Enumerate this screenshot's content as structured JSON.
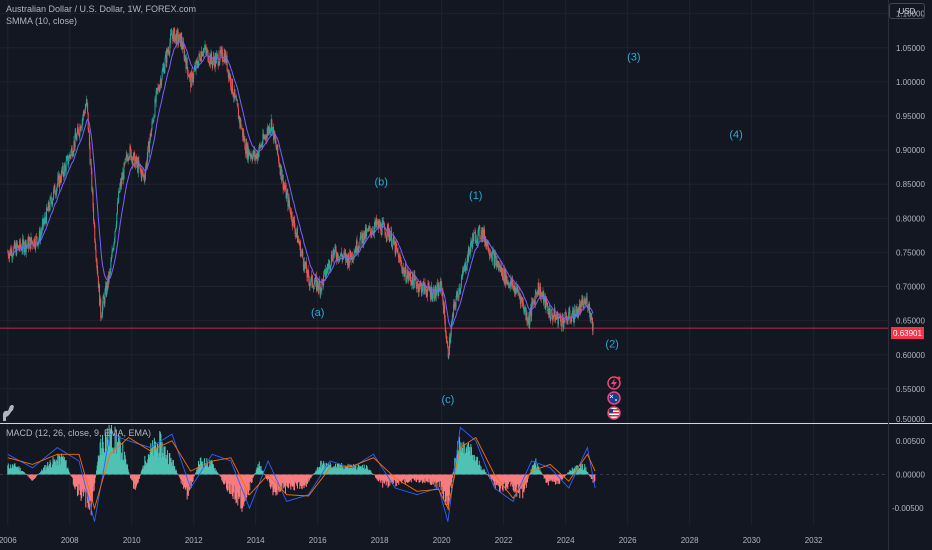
{
  "header": {
    "title": "Australian Dollar / U.S. Dollar, 1W, FOREX.com",
    "indicator": "SMMA (10, close)",
    "currency": "USD"
  },
  "macd_label": "MACD (12, 26, close, 9, EMA, EMA)",
  "last_price": "0.63901",
  "colors": {
    "background": "#131722",
    "up": "#26a69a",
    "down": "#ef5350",
    "smma": "#7b61ff",
    "wave_label": "#2aa8d8",
    "price_line": "#f23645",
    "macd_line": "#2962ff",
    "signal_line": "#ff6d00"
  },
  "icons": [
    "lightning-icon",
    "australia-flag-icon",
    "us-flag-icon",
    "dino-logo-icon"
  ],
  "chart_data": [
    {
      "type": "candlestick",
      "title": "Australian Dollar / U.S. Dollar, 1W, FOREX.com",
      "series": [
        {
          "name": "AUDUSD",
          "x": [
            2006.0,
            2006.5,
            2007.0,
            2007.5,
            2007.9,
            2008.3,
            2008.55,
            2008.8,
            2009.0,
            2009.3,
            2009.6,
            2009.9,
            2010.4,
            2010.8,
            2011.3,
            2011.6,
            2011.9,
            2012.3,
            2012.6,
            2013.0,
            2013.4,
            2013.7,
            2014.0,
            2014.5,
            2014.9,
            2015.3,
            2015.7,
            2016.1,
            2016.5,
            2017.0,
            2017.4,
            2017.9,
            2018.3,
            2018.8,
            2019.3,
            2019.8,
            2020.0,
            2020.2,
            2020.4,
            2020.7,
            2021.0,
            2021.3,
            2021.7,
            2022.1,
            2022.5,
            2022.8,
            2023.1,
            2023.5,
            2023.9,
            2024.3,
            2024.7,
            2024.9
          ],
          "y": [
            0.75,
            0.76,
            0.77,
            0.84,
            0.88,
            0.93,
            0.97,
            0.78,
            0.66,
            0.72,
            0.84,
            0.9,
            0.86,
            0.98,
            1.07,
            1.06,
            1.0,
            1.05,
            1.03,
            1.04,
            0.96,
            0.9,
            0.89,
            0.94,
            0.85,
            0.78,
            0.71,
            0.7,
            0.75,
            0.74,
            0.77,
            0.79,
            0.78,
            0.72,
            0.7,
            0.69,
            0.7,
            0.6,
            0.67,
            0.72,
            0.77,
            0.78,
            0.74,
            0.71,
            0.69,
            0.65,
            0.7,
            0.66,
            0.65,
            0.66,
            0.68,
            0.639
          ]
        }
      ],
      "indicator": "SMMA (10, close)",
      "x_ticks": [
        "2006",
        "2008",
        "2010",
        "2012",
        "2014",
        "2016",
        "2018",
        "2020",
        "2022",
        "2024",
        "2026",
        "2028",
        "2030",
        "2032"
      ],
      "y_ticks": [
        "1.10000",
        "1.05000",
        "1.00000",
        "0.95000",
        "0.90000",
        "0.85000",
        "0.80000",
        "0.75000",
        "0.70000",
        "0.65000",
        "0.60000",
        "0.55000",
        "0.50000"
      ],
      "ylim": [
        0.5,
        1.12
      ],
      "xlim": [
        2005.75,
        2034.4
      ],
      "last_price": 0.63901,
      "annotations": [
        {
          "text": "(a)",
          "x": 2016.0,
          "y": 0.657
        },
        {
          "text": "(b)",
          "x": 2018.05,
          "y": 0.848
        },
        {
          "text": "(c)",
          "x": 2020.2,
          "y": 0.529
        },
        {
          "text": "(1)",
          "x": 2021.1,
          "y": 0.828
        },
        {
          "text": "(2)",
          "x": 2025.5,
          "y": 0.611
        },
        {
          "text": "(3)",
          "x": 2026.2,
          "y": 1.031
        },
        {
          "text": "(4)",
          "x": 2029.5,
          "y": 0.918
        }
      ]
    },
    {
      "type": "bar",
      "title": "MACD (12, 26, close, 9, EMA, EMA)",
      "y_ticks": [
        "0.00500",
        "0.00000",
        "-0.00500"
      ],
      "ylim": [
        -0.0075,
        0.0075
      ],
      "series": [
        {
          "name": "Histogram",
          "x": [
            2006.3,
            2006.8,
            2007.3,
            2007.8,
            2008.2,
            2008.7,
            2009.0,
            2009.3,
            2009.7,
            2010.1,
            2010.5,
            2010.9,
            2011.3,
            2011.8,
            2012.2,
            2012.6,
            2013.1,
            2013.6,
            2014.1,
            2014.6,
            2015.1,
            2015.6,
            2016.1,
            2016.6,
            2017.1,
            2017.6,
            2018.1,
            2018.6,
            2019.1,
            2019.6,
            2020.0,
            2020.2,
            2020.5,
            2020.9,
            2021.3,
            2021.8,
            2022.2,
            2022.6,
            2023.0,
            2023.4,
            2023.8,
            2024.2,
            2024.6,
            2024.9
          ],
          "values": [
            0.0012,
            -0.0008,
            0.0015,
            0.0025,
            -0.002,
            -0.0045,
            0.0045,
            0.006,
            0.0035,
            -0.0025,
            0.003,
            0.0045,
            0.002,
            -0.003,
            0.002,
            0.0015,
            -0.002,
            -0.004,
            0.0015,
            -0.0025,
            -0.0018,
            -0.0015,
            0.0015,
            0.0012,
            0.0012,
            0.001,
            -0.0015,
            -0.0012,
            -0.0008,
            -0.001,
            -0.0018,
            -0.0045,
            0.004,
            0.0035,
            0.001,
            -0.002,
            -0.0015,
            -0.003,
            0.002,
            -0.0012,
            -0.001,
            0.0008,
            0.0012,
            -0.0012
          ]
        },
        {
          "name": "MACD",
          "x": [
            2006.0,
            2006.8,
            2007.6,
            2008.3,
            2008.8,
            2009.3,
            2009.9,
            2010.6,
            2011.3,
            2011.9,
            2012.6,
            2013.2,
            2013.8,
            2014.4,
            2015.0,
            2015.7,
            2016.4,
            2017.1,
            2017.8,
            2018.5,
            2019.2,
            2019.9,
            2020.2,
            2020.6,
            2021.1,
            2021.7,
            2022.3,
            2022.9,
            2023.5,
            2024.1,
            2024.7,
            2024.95
          ],
          "values": [
            0.003,
            0.001,
            0.004,
            0.002,
            -0.007,
            0.006,
            0.005,
            0.004,
            0.006,
            -0.002,
            0.003,
            0.002,
            -0.005,
            0.002,
            -0.004,
            -0.003,
            0.002,
            0.001,
            0.003,
            -0.002,
            -0.003,
            -0.002,
            -0.007,
            0.007,
            0.005,
            -0.002,
            -0.004,
            0.002,
            0.001,
            -0.002,
            0.004,
            -0.002
          ]
        },
        {
          "name": "Signal",
          "x": [
            2006.0,
            2006.8,
            2007.6,
            2008.3,
            2008.8,
            2009.3,
            2009.9,
            2010.6,
            2011.3,
            2011.9,
            2012.6,
            2013.2,
            2013.8,
            2014.4,
            2015.0,
            2015.7,
            2016.4,
            2017.1,
            2017.8,
            2018.5,
            2019.2,
            2019.9,
            2020.2,
            2020.6,
            2021.1,
            2021.7,
            2022.3,
            2022.9,
            2023.5,
            2024.1,
            2024.7,
            2024.95
          ],
          "values": [
            0.0025,
            0.0015,
            0.003,
            0.003,
            -0.005,
            0.003,
            0.0055,
            0.0035,
            0.005,
            0.0005,
            0.002,
            0.0025,
            -0.003,
            0.0,
            -0.003,
            -0.0032,
            0.001,
            0.0012,
            0.0025,
            -0.0005,
            -0.0025,
            -0.0022,
            -0.005,
            0.004,
            0.0055,
            0.0,
            -0.0035,
            0.0005,
            0.0015,
            -0.001,
            0.003,
            0.0005
          ]
        }
      ]
    }
  ]
}
